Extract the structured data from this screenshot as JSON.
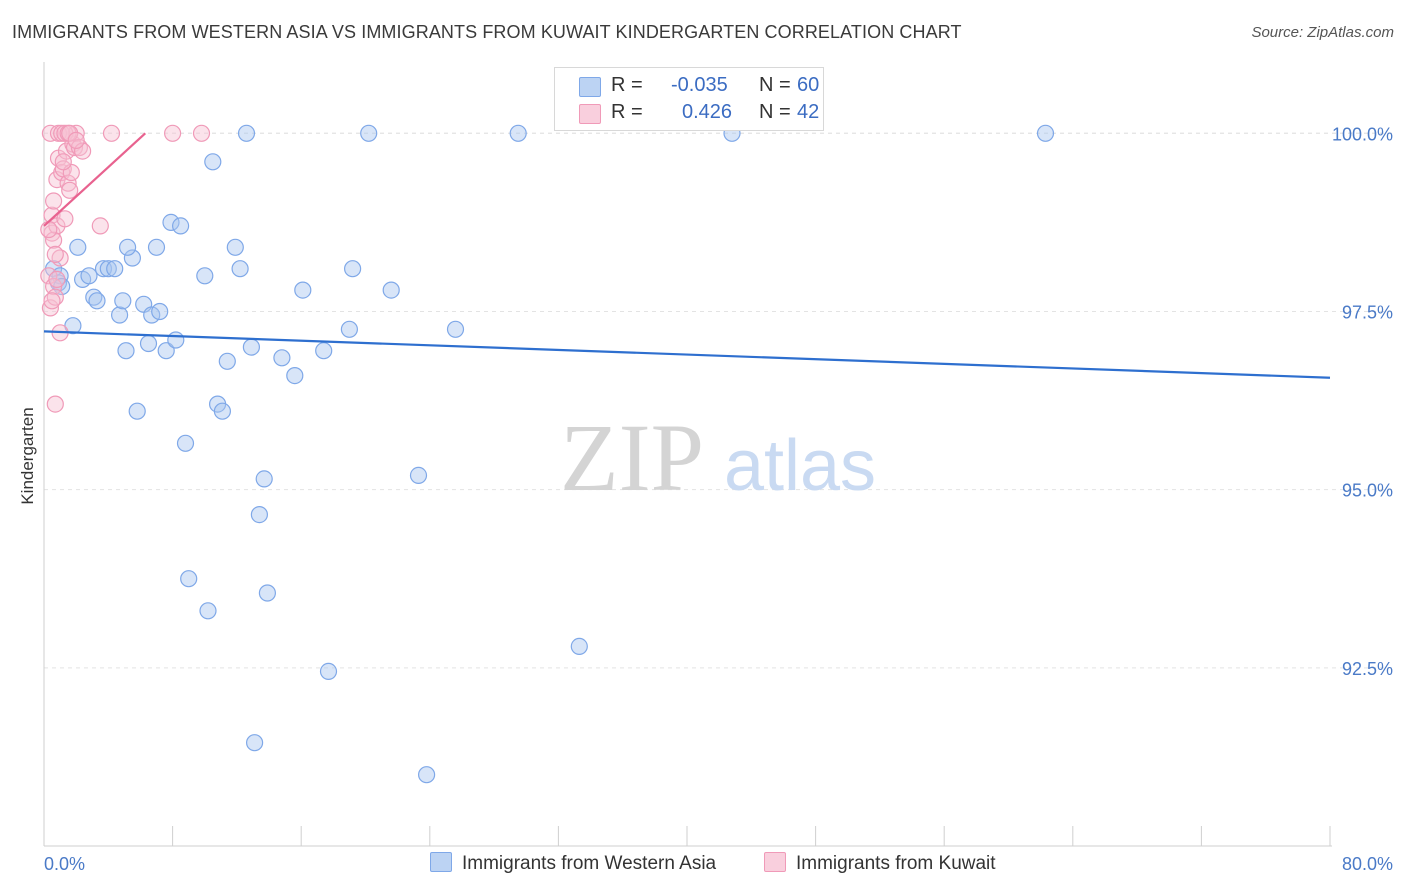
{
  "title": "IMMIGRANTS FROM WESTERN ASIA VS IMMIGRANTS FROM KUWAIT KINDERGARTEN CORRELATION CHART",
  "source": "Source: ZipAtlas.com",
  "watermark": {
    "zip": "ZIP",
    "atlas": "atlas"
  },
  "legend": {
    "r_label": "R =",
    "n_label": "N =",
    "rows": [
      {
        "r": "-0.035",
        "n": "60"
      },
      {
        "r": "0.426",
        "n": "42"
      }
    ]
  },
  "chart_data": {
    "type": "scatter",
    "ylabel": "Kindergarten",
    "xlim": [
      0,
      80
    ],
    "ylim": [
      90.0,
      101.0
    ],
    "x_tick_labels": [
      "0.0%",
      "80.0%"
    ],
    "y_ticks": [
      {
        "value": 100.0,
        "label": "100.0%"
      },
      {
        "value": 97.5,
        "label": "97.5%"
      },
      {
        "value": 95.0,
        "label": "95.0%"
      },
      {
        "value": 92.5,
        "label": "92.5%"
      }
    ],
    "series": [
      {
        "name": "Immigrants from Western Asia",
        "color": "#7fa8e8",
        "fill": "#a9c6f0",
        "line_color": "#2e6fcf",
        "trend": {
          "x": [
            0,
            80
          ],
          "y": [
            97.22,
            96.57
          ]
        },
        "points": [
          [
            0.6,
            98.1
          ],
          [
            0.9,
            97.9
          ],
          [
            1.0,
            98.0
          ],
          [
            1.1,
            97.85
          ],
          [
            1.8,
            97.3
          ],
          [
            2.1,
            98.4
          ],
          [
            2.4,
            97.95
          ],
          [
            2.8,
            98.0
          ],
          [
            3.1,
            97.7
          ],
          [
            3.3,
            97.65
          ],
          [
            3.7,
            98.1
          ],
          [
            4.0,
            98.1
          ],
          [
            4.4,
            98.1
          ],
          [
            4.7,
            97.45
          ],
          [
            4.9,
            97.65
          ],
          [
            5.1,
            96.95
          ],
          [
            5.5,
            98.25
          ],
          [
            5.8,
            96.1
          ],
          [
            6.2,
            97.6
          ],
          [
            6.5,
            97.05
          ],
          [
            6.7,
            97.45
          ],
          [
            7.2,
            97.5
          ],
          [
            7.0,
            98.4
          ],
          [
            7.6,
            96.95
          ],
          [
            7.9,
            98.75
          ],
          [
            8.2,
            97.1
          ],
          [
            8.5,
            98.7
          ],
          [
            8.8,
            95.65
          ],
          [
            9.0,
            93.75
          ],
          [
            10.0,
            98.0
          ],
          [
            10.2,
            93.3
          ],
          [
            10.5,
            99.6
          ],
          [
            10.8,
            96.2
          ],
          [
            11.1,
            96.1
          ],
          [
            11.4,
            96.8
          ],
          [
            11.9,
            98.4
          ],
          [
            12.2,
            98.1
          ],
          [
            12.6,
            100.0
          ],
          [
            12.9,
            97.0
          ],
          [
            13.1,
            91.45
          ],
          [
            13.4,
            94.65
          ],
          [
            13.7,
            95.15
          ],
          [
            13.9,
            93.55
          ],
          [
            14.8,
            96.85
          ],
          [
            15.6,
            96.6
          ],
          [
            16.1,
            97.8
          ],
          [
            17.4,
            96.95
          ],
          [
            17.7,
            92.45
          ],
          [
            19.0,
            97.25
          ],
          [
            19.2,
            98.1
          ],
          [
            20.2,
            100.0
          ],
          [
            21.6,
            97.8
          ],
          [
            23.3,
            95.2
          ],
          [
            23.8,
            91.0
          ],
          [
            25.6,
            97.25
          ],
          [
            29.5,
            100.0
          ],
          [
            33.3,
            92.8
          ],
          [
            42.8,
            100.0
          ],
          [
            62.3,
            100.0
          ],
          [
            5.2,
            98.4
          ]
        ]
      },
      {
        "name": "Immigrants from Kuwait",
        "color": "#f09ab8",
        "fill": "#f7c0d3",
        "line_color": "#e8628f",
        "trend": {
          "x": [
            0.0,
            6.3
          ],
          "y": [
            98.7,
            100.0
          ]
        },
        "points": [
          [
            0.3,
            98.0
          ],
          [
            0.4,
            97.55
          ],
          [
            0.5,
            98.6
          ],
          [
            0.5,
            98.85
          ],
          [
            0.6,
            99.05
          ],
          [
            0.6,
            97.85
          ],
          [
            0.7,
            97.7
          ],
          [
            0.8,
            98.7
          ],
          [
            0.8,
            99.35
          ],
          [
            0.9,
            99.65
          ],
          [
            1.0,
            98.25
          ],
          [
            1.0,
            97.2
          ],
          [
            1.1,
            99.45
          ],
          [
            1.2,
            99.5
          ],
          [
            1.3,
            98.8
          ],
          [
            1.4,
            99.75
          ],
          [
            1.5,
            99.3
          ],
          [
            1.6,
            99.2
          ],
          [
            1.7,
            99.45
          ],
          [
            1.8,
            99.85
          ],
          [
            1.9,
            99.8
          ],
          [
            2.0,
            100.0
          ],
          [
            2.2,
            99.8
          ],
          [
            2.4,
            99.75
          ],
          [
            0.7,
            96.2
          ],
          [
            3.5,
            98.7
          ],
          [
            4.2,
            100.0
          ],
          [
            8.0,
            100.0
          ],
          [
            9.8,
            100.0
          ],
          [
            0.4,
            100.0
          ],
          [
            0.9,
            100.0
          ],
          [
            1.1,
            100.0
          ],
          [
            1.3,
            100.0
          ],
          [
            1.5,
            100.0
          ],
          [
            1.6,
            100.0
          ],
          [
            0.5,
            97.65
          ],
          [
            0.6,
            98.5
          ],
          [
            0.7,
            98.3
          ],
          [
            0.8,
            97.95
          ],
          [
            0.3,
            98.65
          ],
          [
            1.2,
            99.6
          ],
          [
            2.0,
            99.9
          ]
        ]
      }
    ]
  }
}
